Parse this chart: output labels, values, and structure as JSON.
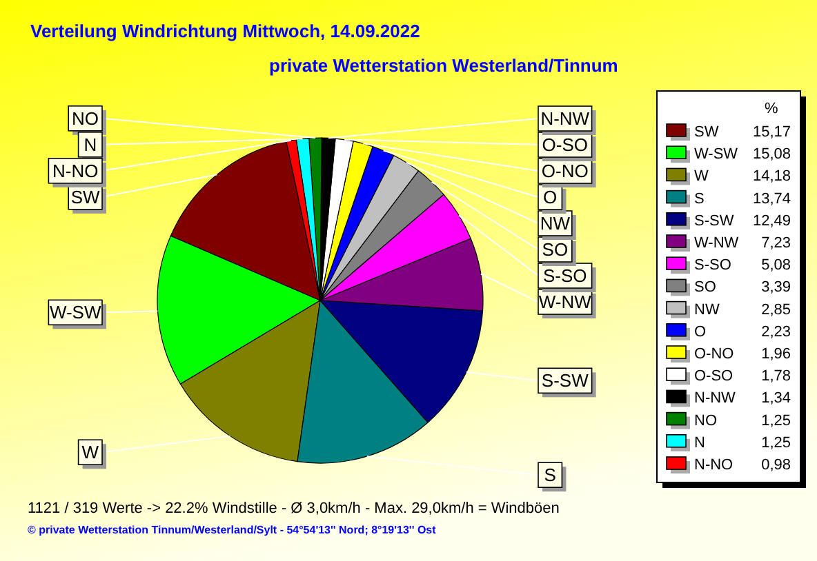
{
  "chart_data": {
    "type": "pie",
    "title": "Verteilung Windrichtung   Mittwoch, 14.09.2022",
    "subtitle": "private Wetterstation Westerland/Tinnum",
    "categories": [
      "SW",
      "W-SW",
      "W",
      "S",
      "S-SW",
      "W-NW",
      "S-SO",
      "SO",
      "NW",
      "O",
      "O-NO",
      "O-SO",
      "N-NW",
      "NO",
      "N",
      "N-NO"
    ],
    "values": [
      15.17,
      15.08,
      14.18,
      13.74,
      12.49,
      7.23,
      5.08,
      3.39,
      2.85,
      2.23,
      1.96,
      1.78,
      1.34,
      1.25,
      1.25,
      0.98
    ],
    "value_labels": [
      "15,17",
      "15,08",
      "14,18",
      "13,74",
      "12,49",
      "7,23",
      "5,08",
      "3,39",
      "2,85",
      "2,23",
      "1,96",
      "1,78",
      "1,34",
      "1,25",
      "1,25",
      "0,98"
    ],
    "colors": [
      "#800000",
      "#00ff00",
      "#808000",
      "#008080",
      "#000080",
      "#800080",
      "#ff00ff",
      "#808080",
      "#c0c0c0",
      "#0000ff",
      "#ffff00",
      "#ffffff",
      "#000000",
      "#008000",
      "#00ffff",
      "#ff0000"
    ],
    "legend": "right",
    "legend_title": "%",
    "annotations": [
      "1121  / 319 Werte  -> 22.2% Windstille   -   Ø 3,0km/h  -  Max. 29,0km/h = Windböen",
      "© private Wetterstation Tinnum/Westerland/Sylt  -  54°54'13'' Nord; 8°19'13'' Ost"
    ]
  }
}
